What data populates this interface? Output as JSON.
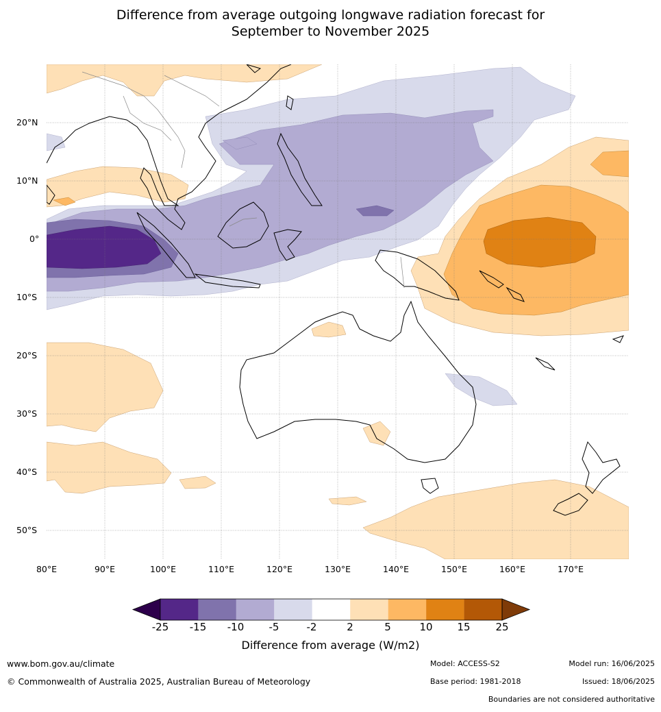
{
  "title_line1": "Difference from average outgoing longwave radiation forecast for",
  "title_line2": "September to November 2025",
  "lat_labels": [
    "20°N",
    "10°N",
    "0°",
    "10°S",
    "20°S",
    "30°S",
    "40°S",
    "50°S"
  ],
  "lon_labels": [
    "80°E",
    "90°E",
    "100°E",
    "110°E",
    "120°E",
    "130°E",
    "140°E",
    "150°E",
    "160°E",
    "170°E"
  ],
  "colorbar": {
    "ticks": [
      "-25",
      "-15",
      "-10",
      "-5",
      "-2",
      "2",
      "5",
      "10",
      "15",
      "25"
    ],
    "colors": [
      "#2d004b",
      "#542788",
      "#8073ac",
      "#b2abd2",
      "#d8daeb",
      "#ffffff",
      "#fee0b6",
      "#fdb863",
      "#e08214",
      "#b35806",
      "#7f3b08"
    ],
    "label": "Difference from average (W/m2)"
  },
  "footer": {
    "url": "www.bom.gov.au/climate",
    "copyright": "© Commonwealth of Australia 2025, Australian Bureau of Meteorology",
    "model": "Model: ACCESS-S2",
    "base_period": "Base period: 1981-2018",
    "model_run": "Model run: 16/06/2025",
    "issued": "Issued: 18/06/2025",
    "disclaimer": "Boundaries are not considered authoritative"
  }
}
